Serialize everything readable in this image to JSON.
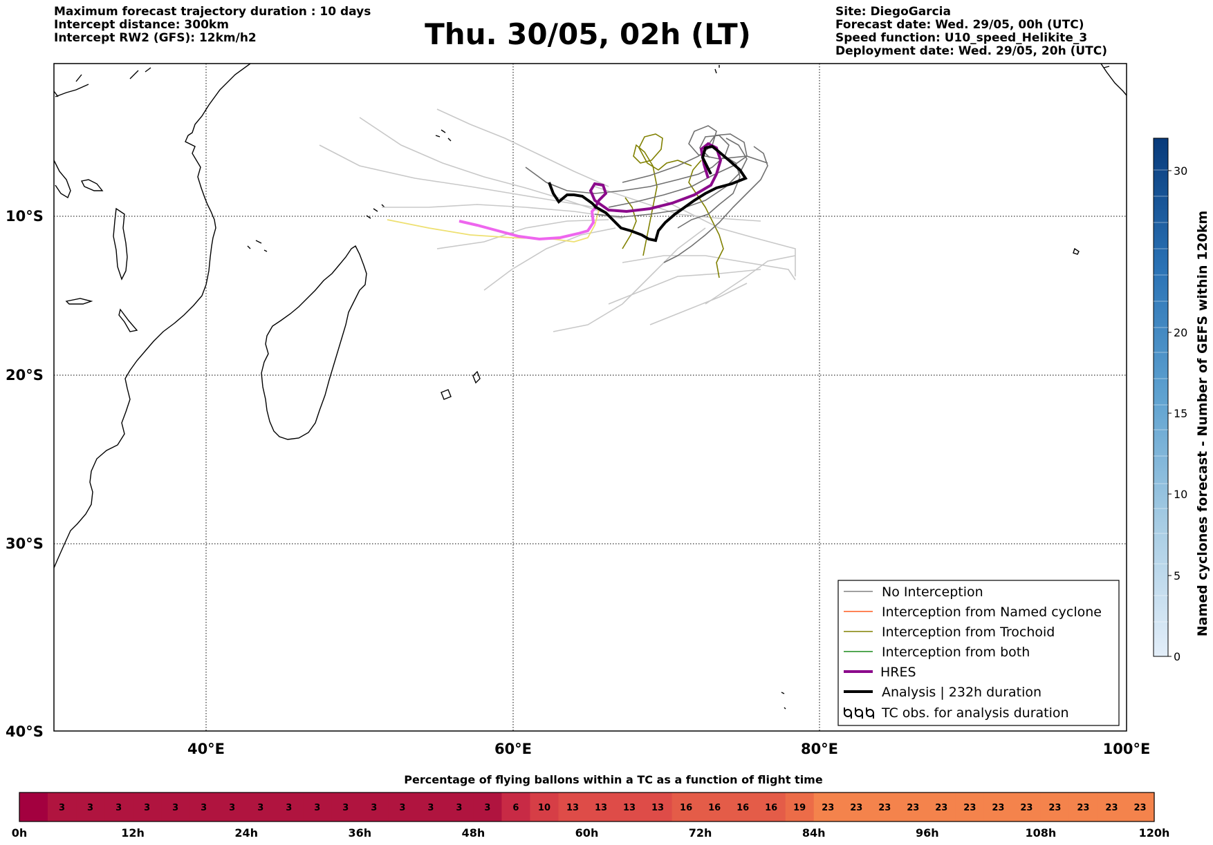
{
  "header": {
    "title": "Thu. 30/05, 02h (LT)",
    "left_lines": [
      "Maximum forecast trajectory duration : 10 days",
      "Intercept distance: 300km",
      "Intercept RW2 (GFS):  12km/h2"
    ],
    "right_lines": [
      "Site: DiegoGarcia",
      "Forecast date: Wed. 29/05, 00h (UTC)",
      "Speed function: U10_speed_Helikite_3",
      "Deployment date: Wed. 29/05, 20h (UTC)"
    ]
  },
  "map": {
    "lon_range": [
      30,
      100
    ],
    "lat_labels": [
      "10°S",
      "20°S",
      "30°S",
      "40°S"
    ],
    "lon_labels": [
      "40°E",
      "60°E",
      "80°E",
      "100°E"
    ],
    "gridlines": "dotted"
  },
  "legend": {
    "entries": [
      {
        "label": "No Interception",
        "color": "#808080",
        "style": "thin"
      },
      {
        "label": "Interception from Named cyclone",
        "color": "#ff5a1e",
        "style": "thin"
      },
      {
        "label": "Interception from Trochoid",
        "color": "#808000",
        "style": "thin"
      },
      {
        "label": "Interception from both",
        "color": "#1a8a1a",
        "style": "thin"
      },
      {
        "label": "HRES",
        "color": "#8b0a8b",
        "style": "thick"
      },
      {
        "label": "Analysis | 232h duration",
        "color": "#000000",
        "style": "thick"
      },
      {
        "label": "TC obs. for analysis duration",
        "color": "#000000",
        "style": "symbol"
      }
    ]
  },
  "colorbar_right": {
    "label": "Named cyclones forecast - Number of GEFS within 120km",
    "ticks": [
      "0",
      "5",
      "10",
      "15",
      "20",
      "30"
    ]
  },
  "colorbar_bottom": {
    "title": "Percentage of flying ballons within a TC as a function of flight time",
    "values": [
      null,
      3,
      3,
      3,
      3,
      3,
      3,
      3,
      3,
      3,
      3,
      3,
      3,
      3,
      3,
      3,
      3,
      6,
      10,
      13,
      13,
      13,
      13,
      16,
      16,
      16,
      16,
      19,
      23,
      23,
      23,
      23,
      23,
      23,
      23,
      23,
      23,
      23,
      23,
      23
    ],
    "time_labels": [
      "0h",
      "12h",
      "24h",
      "36h",
      "48h",
      "60h",
      "72h",
      "84h",
      "96h",
      "108h",
      "120h"
    ]
  },
  "colors": {
    "hres": "#8b0a8b",
    "hres_forecast": "#ee66ee",
    "analysis": "#000000",
    "trochoid": "#808000",
    "no_interception": "#707070",
    "ensemble_light": "#c8c8c8",
    "yellow_track": "#eee070"
  }
}
